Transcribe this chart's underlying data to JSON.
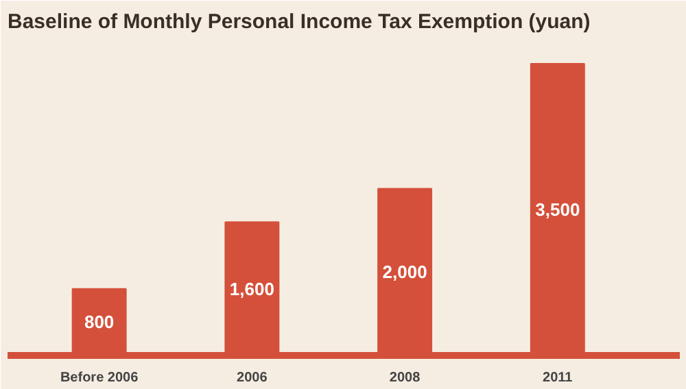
{
  "chart_data": {
    "type": "bar",
    "title": "Baseline of Monthly Personal Income Tax Exemption  (yuan)",
    "categories": [
      "Before 2006",
      "2006",
      "2008",
      "2011"
    ],
    "values": [
      800,
      1600,
      2000,
      3500
    ],
    "color": "#d4503a",
    "value_labels": [
      "800",
      "1,600",
      "2,000",
      "3,500"
    ],
    "grid": false
  }
}
